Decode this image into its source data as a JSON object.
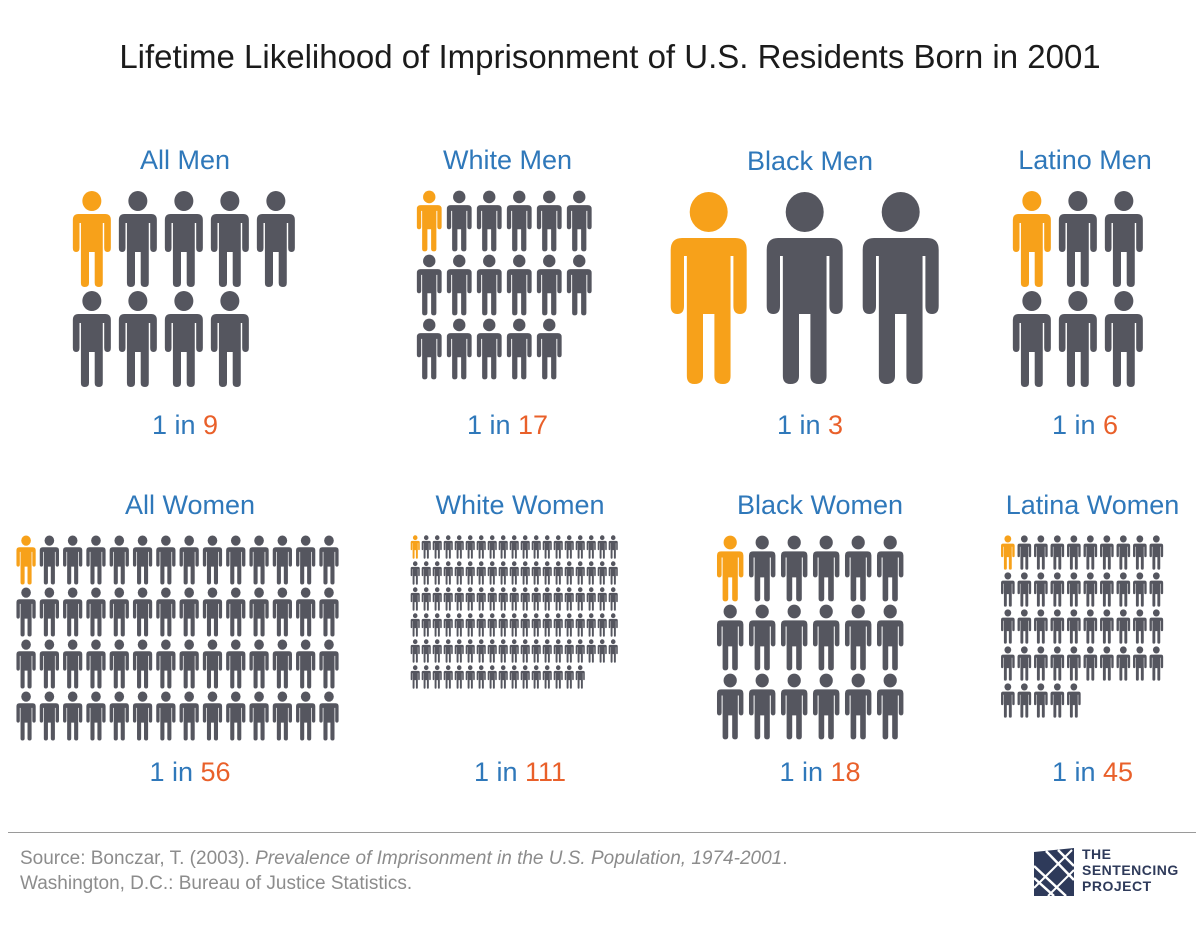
{
  "chart_data": {
    "type": "pictograph",
    "title": "Lifetime Likelihood of Imprisonment of U.S. Residents Born in 2001",
    "unit_label": "1 in",
    "groups": [
      {
        "label": "All Men",
        "ratio_prefix": "1 in",
        "ratio": 9
      },
      {
        "label": "White Men",
        "ratio_prefix": "1 in",
        "ratio": 17
      },
      {
        "label": "Black Men",
        "ratio_prefix": "1 in",
        "ratio": 3
      },
      {
        "label": "Latino Men",
        "ratio_prefix": "1 in",
        "ratio": 6
      },
      {
        "label": "All Women",
        "ratio_prefix": "1 in",
        "ratio": 56
      },
      {
        "label": "White Women",
        "ratio_prefix": "1 in",
        "ratio": 111
      },
      {
        "label": "Black Women",
        "ratio_prefix": "1 in",
        "ratio": 18
      },
      {
        "label": "Latina Women",
        "ratio_prefix": "1 in",
        "ratio": 45
      }
    ]
  },
  "source": {
    "prefix": "Source: Bonczar, T. (2003). ",
    "title": "Prevalence of Imprisonment in the U.S. Population, 1974-2001",
    "suffix": ".",
    "line2": "Washington, D.C.: Bureau of Justice Statistics."
  },
  "logo": {
    "line1": "THE",
    "line2": "SENTENCING",
    "line3": "PROJECT"
  },
  "colors": {
    "highlight": "#F7A11A",
    "figure": "#55565F",
    "label": "#2F78BA",
    "number": "#E9602A",
    "logo": "#2E3A5A"
  }
}
